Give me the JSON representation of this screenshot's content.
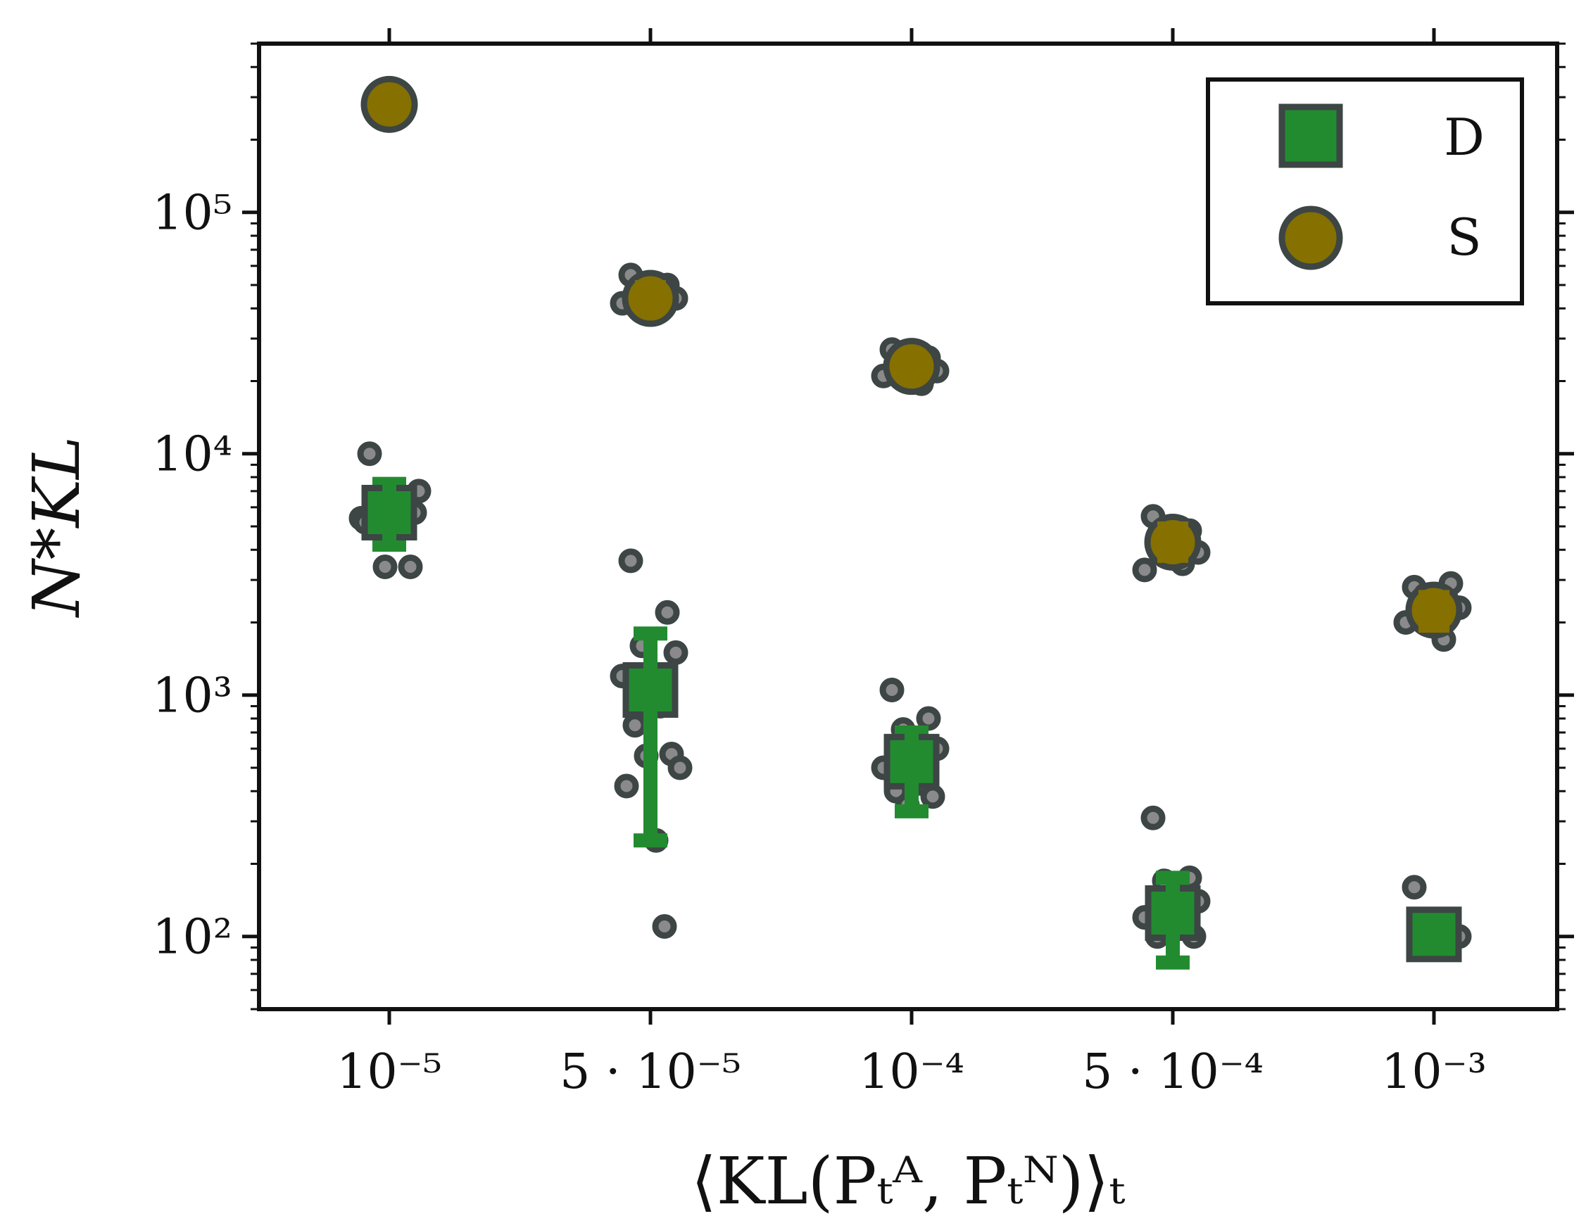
{
  "chart_data": {
    "type": "scatter",
    "title": "",
    "xlabel": "⟨KL(Pₜᴬ, Pₜᴺ)⟩ₜ",
    "ylabel": "N*KL",
    "y_scale": "log",
    "ylim": [
      50,
      500000
    ],
    "categories": [
      "10⁻⁵",
      "5 · 10⁻⁵",
      "10⁻⁴",
      "5 · 10⁻⁴",
      "10⁻³"
    ],
    "y_tick_values": [
      100,
      1000,
      10000,
      100000
    ],
    "y_tick_labels": [
      "10²",
      "10³",
      "10⁴",
      "10⁵"
    ],
    "legend": {
      "position": "top-right",
      "entries": [
        {
          "name": "D",
          "marker": "square",
          "color": "#228b30",
          "edge": "#3d4545"
        },
        {
          "name": "S",
          "marker": "circle",
          "color": "#857000",
          "edge": "#3d4545"
        }
      ]
    },
    "series": [
      {
        "name": "D",
        "mean": [
          5700,
          1050,
          530,
          125,
          102
        ],
        "err_low": [
          4200,
          250,
          330,
          78,
          102
        ],
        "err_high": [
          7500,
          1800,
          700,
          175,
          102
        ],
        "samples": [
          [
            10000,
            6500,
            6000,
            5700,
            5400,
            5000,
            6600,
            3400,
            3400,
            7000,
            5200
          ],
          [
            3600,
            2200,
            1600,
            1500,
            1200,
            900,
            750,
            570,
            560,
            500,
            420,
            250,
            110
          ],
          [
            1050,
            800,
            720,
            600,
            500,
            430,
            400,
            380,
            350
          ],
          [
            310,
            175,
            170,
            140,
            120,
            110,
            100,
            100
          ],
          [
            160,
            100,
            100,
            100
          ]
        ]
      },
      {
        "name": "S",
        "mean": [
          280000,
          44000,
          23000,
          4300,
          2250
        ],
        "err_low": [
          280000,
          40000,
          21000,
          3700,
          1900
        ],
        "err_high": [
          280000,
          50000,
          25500,
          5000,
          2600
        ],
        "samples": [
          [
            280000
          ],
          [
            55000,
            50000,
            47000,
            44000,
            42000,
            40000
          ],
          [
            27000,
            25000,
            24000,
            22000,
            21000,
            19500
          ],
          [
            5500,
            4800,
            4300,
            3900,
            3300,
            3500
          ],
          [
            2800,
            2900,
            2600,
            2300,
            2000,
            1700
          ]
        ]
      }
    ]
  },
  "colors": {
    "square_fill": "#228b30",
    "circle_fill": "#857000",
    "marker_edge": "#3d4545",
    "sample_fill": "#8a8a8a",
    "sample_edge": "#3d4545",
    "axis": "#111111"
  }
}
